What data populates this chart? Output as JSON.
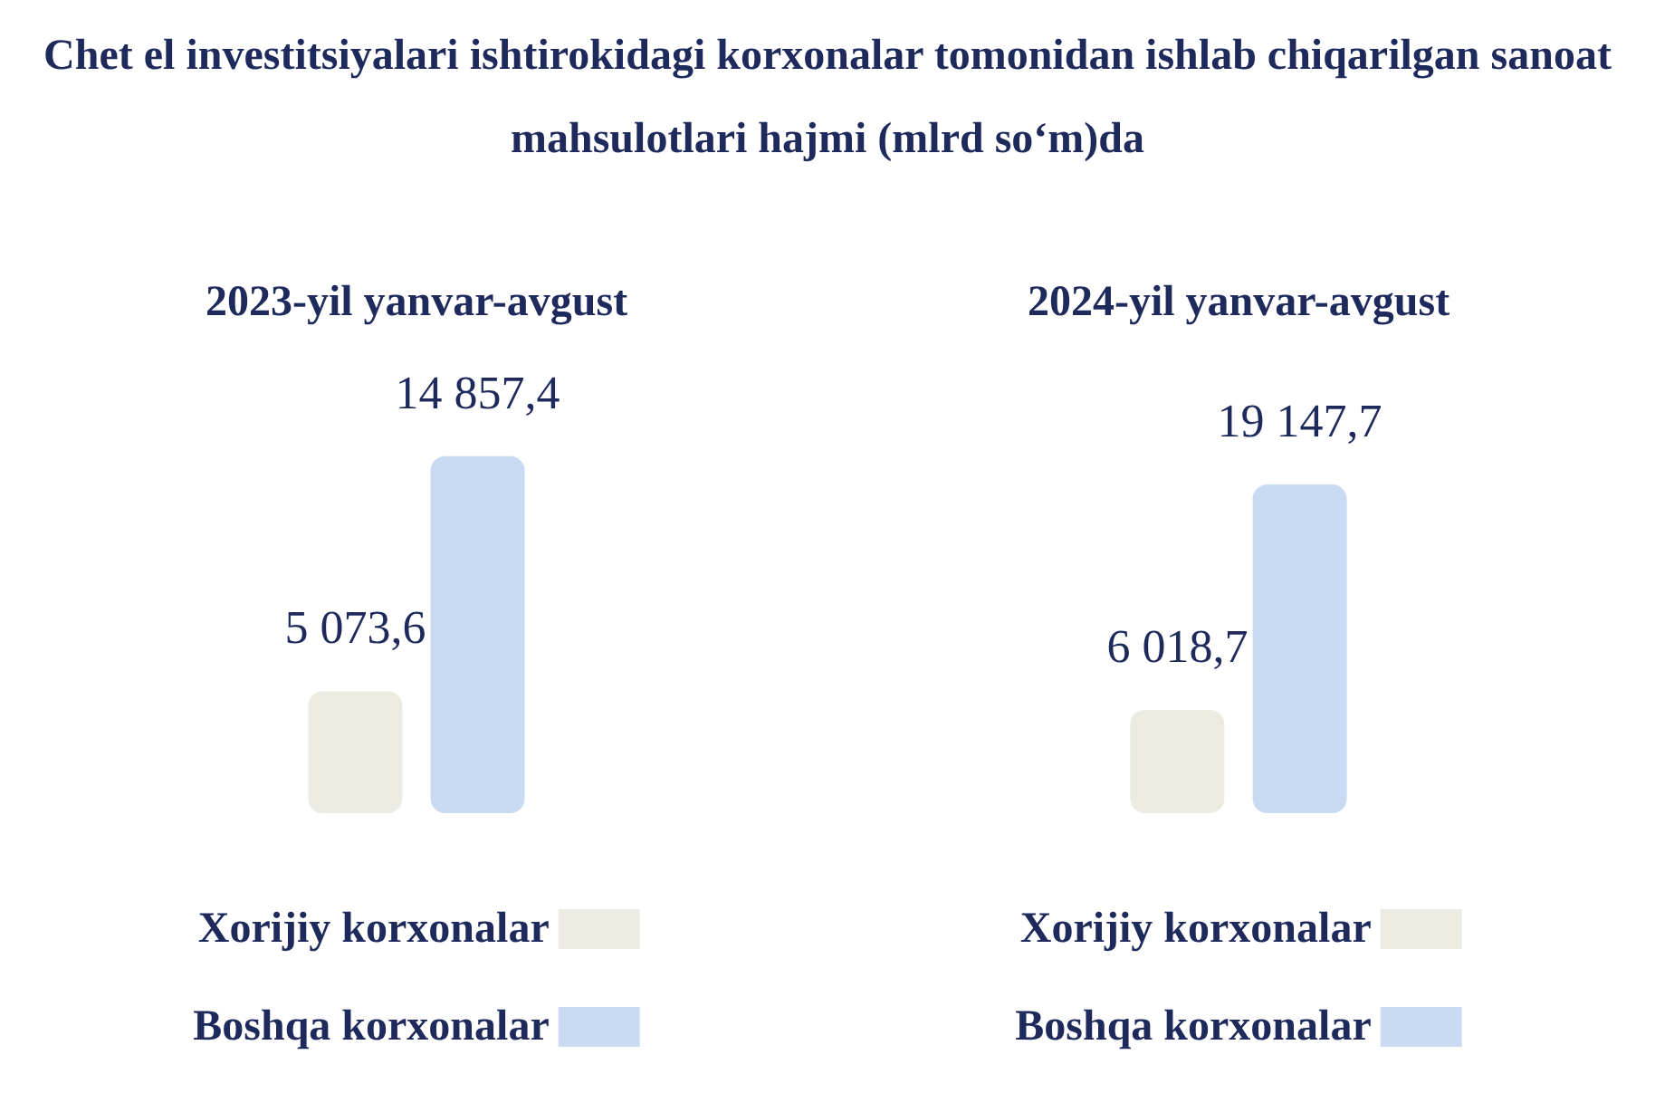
{
  "chart_data": [
    {
      "type": "bar",
      "title": "Chet el investitsiyalari ishtirokidagi korxonalar tomonidan ishlab chiqarilgan sanoat   mahsulotlari hajmi (mlrd so‘m)da",
      "subtitle": "2023-yil yanvar-avgust",
      "categories": [
        null
      ],
      "legend": "bottom",
      "series": [
        {
          "name": "Xorijiy korxonalar",
          "color": "#ecebe1",
          "values": [
            5073.6
          ],
          "value_labels": [
            "5 073,6"
          ]
        },
        {
          "name": "Boshqa korxonalar",
          "color": "#c9dbf3",
          "values": [
            14857.4
          ],
          "value_labels": [
            "14 857,4"
          ]
        }
      ]
    },
    {
      "type": "bar",
      "subtitle": "2024-yil yanvar-avgust",
      "categories": [
        null
      ],
      "legend": "bottom",
      "series": [
        {
          "name": "Xorijiy korxonalar",
          "color": "#ecebe1",
          "values": [
            6018.7
          ],
          "value_labels": [
            "6 018,7"
          ]
        },
        {
          "name": "Boshqa korxonalar",
          "color": "#c9dbf3",
          "values": [
            19147.7
          ],
          "value_labels": [
            "19 147,7"
          ]
        }
      ]
    }
  ]
}
